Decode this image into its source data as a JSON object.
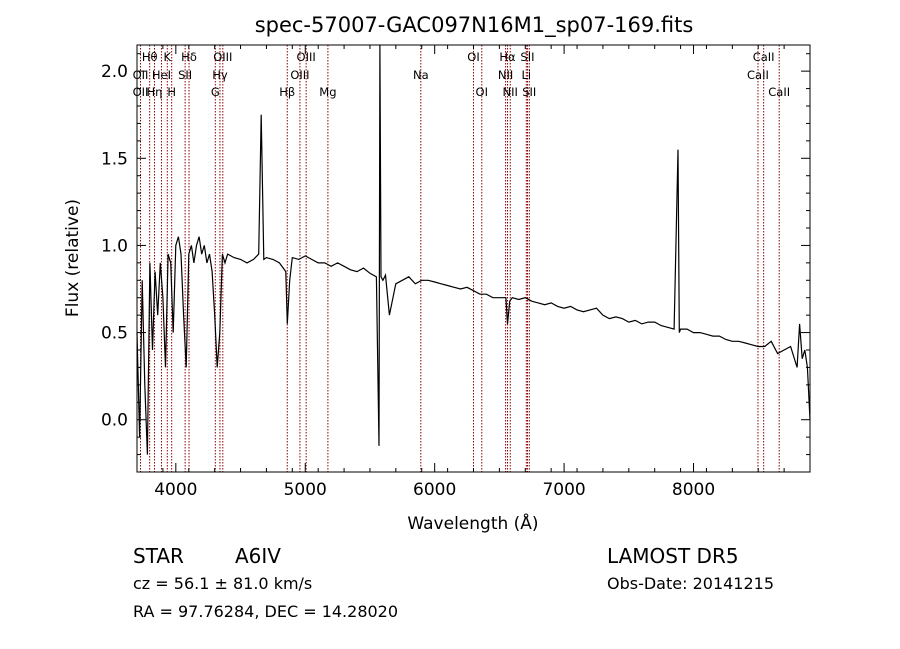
{
  "colors": {
    "background": "#ffffff",
    "spectrum": "#000000",
    "line_markers": "#8b0000"
  },
  "chart_data": {
    "type": "line",
    "title": "spec-57007-GAC097N16M1_sp07-169.fits",
    "xlabel": "Wavelength (Å)",
    "ylabel": "Flux (relative)",
    "xlim": [
      3700,
      8900
    ],
    "ylim": [
      -0.3,
      2.15
    ],
    "x_ticks": [
      4000,
      5000,
      6000,
      7000,
      8000
    ],
    "x_tick_labels": [
      "4000",
      "5000",
      "6000",
      "7000",
      "8000"
    ],
    "y_ticks": [
      0.0,
      0.5,
      1.0,
      1.5,
      2.0
    ],
    "y_tick_labels": [
      "0.0",
      "0.5",
      "1.0",
      "1.5",
      "2.0"
    ],
    "grid": false,
    "spectrum": {
      "x": [
        3700,
        3720,
        3740,
        3760,
        3780,
        3800,
        3820,
        3840,
        3860,
        3880,
        3900,
        3920,
        3940,
        3960,
        3980,
        4000,
        4020,
        4040,
        4060,
        4080,
        4100,
        4120,
        4140,
        4160,
        4180,
        4200,
        4220,
        4240,
        4260,
        4280,
        4300,
        4320,
        4340,
        4360,
        4380,
        4400,
        4450,
        4500,
        4550,
        4600,
        4640,
        4660,
        4680,
        4700,
        4750,
        4800,
        4850,
        4861,
        4880,
        4900,
        4950,
        5000,
        5050,
        5100,
        5150,
        5200,
        5250,
        5300,
        5350,
        5400,
        5450,
        5500,
        5550,
        5570,
        5577,
        5585,
        5600,
        5620,
        5650,
        5700,
        5750,
        5800,
        5850,
        5900,
        5950,
        6000,
        6050,
        6100,
        6150,
        6200,
        6250,
        6300,
        6350,
        6400,
        6450,
        6500,
        6550,
        6563,
        6580,
        6600,
        6650,
        6700,
        6750,
        6800,
        6850,
        6900,
        6950,
        7000,
        7050,
        7100,
        7150,
        7200,
        7250,
        7300,
        7350,
        7400,
        7450,
        7500,
        7550,
        7600,
        7650,
        7700,
        7750,
        7800,
        7850,
        7880,
        7890,
        7900,
        7950,
        8000,
        8050,
        8100,
        8150,
        8200,
        8250,
        8300,
        8350,
        8400,
        8450,
        8500,
        8550,
        8600,
        8650,
        8700,
        8750,
        8800,
        8820,
        8840,
        8860,
        8880,
        8900
      ],
      "y": [
        0.5,
        -0.1,
        0.8,
        0.2,
        -0.2,
        0.9,
        0.4,
        0.85,
        0.6,
        0.9,
        0.7,
        0.3,
        0.95,
        0.9,
        0.5,
        1.0,
        1.05,
        0.95,
        0.6,
        0.3,
        0.95,
        1.0,
        0.9,
        1.0,
        1.05,
        0.95,
        1.0,
        0.9,
        0.95,
        0.85,
        0.6,
        0.3,
        0.5,
        0.95,
        0.9,
        0.95,
        0.93,
        0.92,
        0.9,
        0.92,
        0.95,
        1.75,
        0.92,
        0.93,
        0.92,
        0.9,
        0.85,
        0.55,
        0.8,
        0.93,
        0.92,
        0.94,
        0.92,
        0.9,
        0.9,
        0.88,
        0.9,
        0.88,
        0.86,
        0.85,
        0.87,
        0.84,
        0.82,
        -0.15,
        2.2,
        0.82,
        0.8,
        0.83,
        0.6,
        0.78,
        0.8,
        0.82,
        0.78,
        0.8,
        0.8,
        0.79,
        0.78,
        0.77,
        0.76,
        0.75,
        0.76,
        0.74,
        0.72,
        0.72,
        0.7,
        0.7,
        0.7,
        0.55,
        0.68,
        0.7,
        0.69,
        0.7,
        0.68,
        0.67,
        0.66,
        0.67,
        0.65,
        0.64,
        0.65,
        0.63,
        0.62,
        0.63,
        0.64,
        0.6,
        0.58,
        0.59,
        0.58,
        0.56,
        0.57,
        0.55,
        0.56,
        0.56,
        0.54,
        0.53,
        0.52,
        1.55,
        0.5,
        0.52,
        0.52,
        0.5,
        0.5,
        0.49,
        0.48,
        0.48,
        0.46,
        0.45,
        0.45,
        0.44,
        0.43,
        0.42,
        0.42,
        0.45,
        0.38,
        0.4,
        0.42,
        0.3,
        0.55,
        0.35,
        0.4,
        0.3,
        0.0
      ]
    },
    "spectral_lines": [
      {
        "name": "Hθ",
        "wavelength": 3798,
        "row": 0
      },
      {
        "name": "OII",
        "wavelength": 3727,
        "row": 1
      },
      {
        "name": "OII",
        "wavelength": 3727,
        "row": 2
      },
      {
        "name": "Hη",
        "wavelength": 3835,
        "row": 2
      },
      {
        "name": "HeI",
        "wavelength": 3889,
        "row": 1
      },
      {
        "name": "K",
        "wavelength": 3934,
        "row": 0
      },
      {
        "name": "H",
        "wavelength": 3968,
        "row": 2
      },
      {
        "name": "Hδ",
        "wavelength": 4102,
        "row": 0
      },
      {
        "name": "SII",
        "wavelength": 4072,
        "row": 1
      },
      {
        "name": "OIII",
        "wavelength": 4363,
        "row": 0
      },
      {
        "name": "Hγ",
        "wavelength": 4341,
        "row": 1
      },
      {
        "name": "G",
        "wavelength": 4305,
        "row": 2
      },
      {
        "name": "OIII",
        "wavelength": 5007,
        "row": 0
      },
      {
        "name": "OIII",
        "wavelength": 4959,
        "row": 1
      },
      {
        "name": "Hβ",
        "wavelength": 4861,
        "row": 2
      },
      {
        "name": "Mg",
        "wavelength": 5175,
        "row": 2
      },
      {
        "name": "Na",
        "wavelength": 5893,
        "row": 1
      },
      {
        "name": "OI",
        "wavelength": 6300,
        "row": 0
      },
      {
        "name": "OI",
        "wavelength": 6364,
        "row": 2
      },
      {
        "name": "Hα",
        "wavelength": 6563,
        "row": 0
      },
      {
        "name": "NII",
        "wavelength": 6548,
        "row": 1
      },
      {
        "name": "NII",
        "wavelength": 6584,
        "row": 2
      },
      {
        "name": "SII",
        "wavelength": 6717,
        "row": 0
      },
      {
        "name": "Li",
        "wavelength": 6708,
        "row": 1
      },
      {
        "name": "SII",
        "wavelength": 6731,
        "row": 2
      },
      {
        "name": "CaII",
        "wavelength": 8542,
        "row": 0
      },
      {
        "name": "CaII",
        "wavelength": 8498,
        "row": 1
      },
      {
        "name": "CaII",
        "wavelength": 8662,
        "row": 2
      }
    ]
  },
  "info": {
    "class_label": "STAR",
    "subclass": "A6IV",
    "survey": "LAMOST DR5",
    "cz": "cz = 56.1 ± 81.0 km/s",
    "obs_date": "Obs-Date: 20141215",
    "radec": "RA =  97.76284, DEC =  14.28020"
  }
}
